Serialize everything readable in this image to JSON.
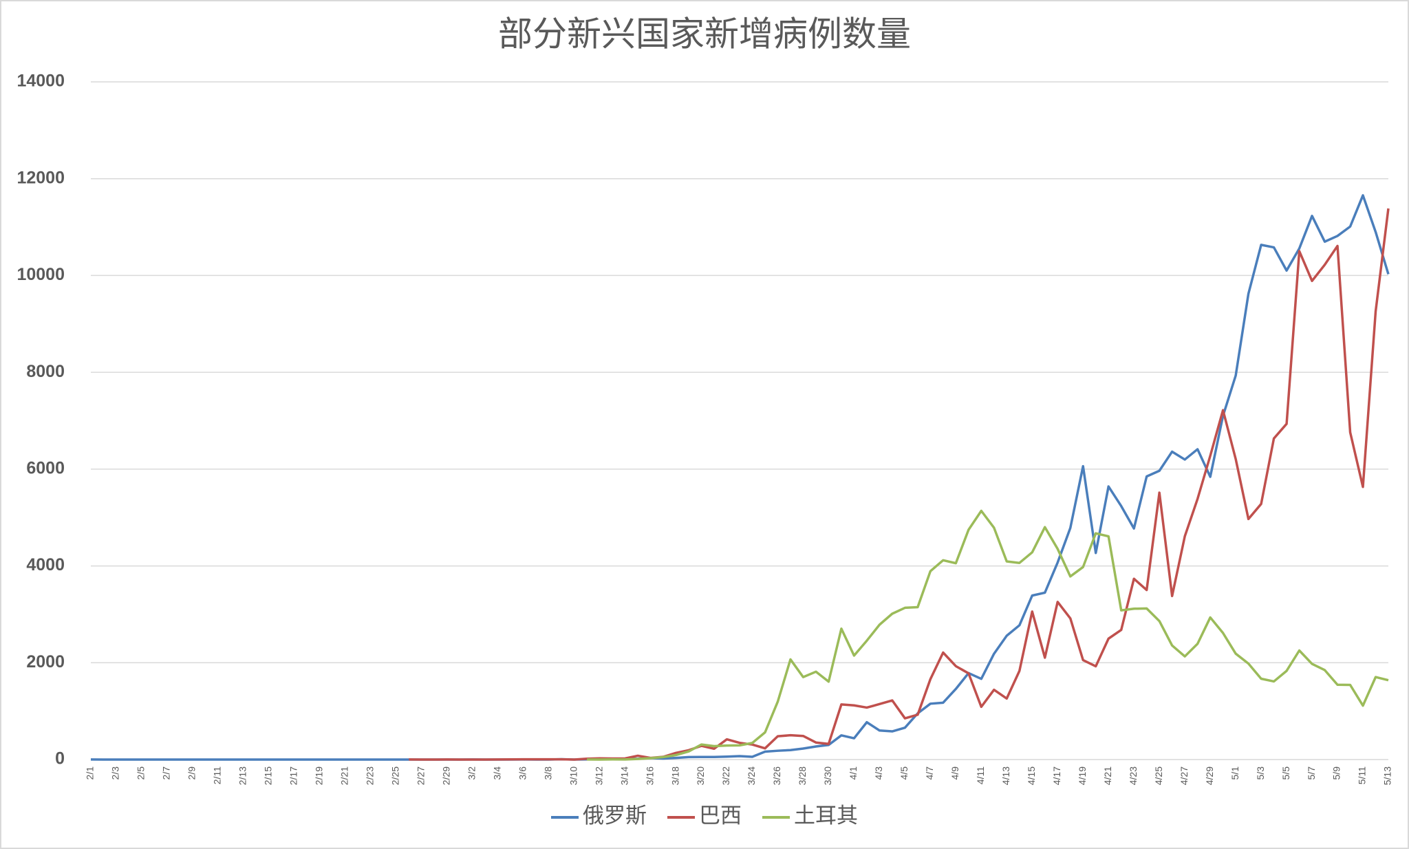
{
  "chart_data": {
    "type": "line",
    "title": "部分新兴国家新增病例数量",
    "categories": [
      "2/1",
      null,
      "2/3",
      null,
      "2/5",
      null,
      "2/7",
      null,
      "2/9",
      null,
      "2/11",
      null,
      "2/13",
      null,
      "2/15",
      null,
      "2/17",
      null,
      "2/19",
      null,
      "2/21",
      null,
      "2/23",
      null,
      "2/25",
      null,
      "2/27",
      null,
      "2/29",
      null,
      "3/2",
      null,
      "3/4",
      null,
      "3/6",
      null,
      "3/8",
      null,
      "3/10",
      null,
      "3/12",
      null,
      "3/14",
      null,
      "3/16",
      null,
      "3/18",
      null,
      "3/20",
      null,
      "3/22",
      null,
      "3/24",
      null,
      "3/26",
      null,
      "3/28",
      null,
      "3/30",
      null,
      "4/1",
      null,
      "4/3",
      null,
      "4/5",
      null,
      "4/7",
      null,
      "4/9",
      null,
      "4/11",
      null,
      "4/13",
      null,
      "4/15",
      null,
      "4/17",
      null,
      "4/19",
      null,
      "4/21",
      null,
      "4/23",
      null,
      "4/25",
      null,
      "4/27",
      null,
      "4/29",
      null,
      "5/1",
      null,
      "5/3",
      null,
      "5/5",
      null,
      "5/7",
      null,
      "5/9",
      null,
      "5/11",
      null,
      "5/13"
    ],
    "series": [
      {
        "name": "俄罗斯",
        "color": "#4a7ebb",
        "values": [
          2,
          0,
          0,
          0,
          0,
          0,
          0,
          0,
          0,
          0,
          0,
          0,
          0,
          0,
          0,
          0,
          0,
          0,
          0,
          0,
          0,
          0,
          0,
          0,
          0,
          0,
          0,
          0,
          0,
          0,
          1,
          0,
          0,
          0,
          1,
          0,
          0,
          7,
          0,
          3,
          6,
          17,
          14,
          18,
          30,
          21,
          33,
          52,
          53,
          54,
          61,
          71,
          57,
          163,
          182,
          196,
          228,
          270,
          302,
          500,
          440,
          771,
          601,
          582,
          658,
          954,
          1154,
          1175,
          1459,
          1786,
          1667,
          2186,
          2558,
          2774,
          3388,
          3448,
          4070,
          4785,
          6060,
          4268,
          5642,
          5236,
          4774,
          5849,
          5966,
          6361,
          6198,
          6411,
          5841,
          7099,
          7933,
          9623,
          10633,
          10581,
          10102,
          10559,
          11231,
          10699,
          10817,
          11012,
          11656,
          10899,
          10028
        ]
      },
      {
        "name": "巴西",
        "color": "#c0504d",
        "values": [
          null,
          null,
          null,
          null,
          null,
          null,
          null,
          null,
          null,
          null,
          null,
          null,
          null,
          null,
          null,
          null,
          null,
          null,
          null,
          null,
          null,
          null,
          null,
          null,
          null,
          1,
          0,
          0,
          1,
          0,
          0,
          0,
          1,
          4,
          6,
          6,
          6,
          5,
          0,
          18,
          25,
          21,
          23,
          79,
          34,
          57,
          137,
          193,
          283,
          224,
          418,
          345,
          310,
          232,
          482,
          502,
          487,
          352,
          323,
          1138,
          1119,
          1074,
          1146,
          1222,
          852,
          926,
          1661,
          2210,
          1930,
          1781,
          1089,
          1442,
          1261,
          1832,
          3058,
          2105,
          3257,
          2917,
          2055,
          1927,
          2498,
          2678,
          3735,
          3503,
          5514,
          3379,
          4613,
          5385,
          6276,
          7218,
          6209,
          4970,
          5281,
          6633,
          6935,
          10503,
          9888,
          10222,
          10611,
          6760,
          5632,
          9258,
          11385
        ]
      },
      {
        "name": "土耳其",
        "color": "#9bbb59",
        "values": [
          null,
          null,
          null,
          null,
          null,
          null,
          null,
          null,
          null,
          null,
          null,
          null,
          null,
          null,
          null,
          null,
          null,
          null,
          null,
          null,
          null,
          null,
          null,
          null,
          null,
          null,
          null,
          null,
          null,
          null,
          null,
          null,
          null,
          null,
          null,
          null,
          null,
          null,
          null,
          1,
          0,
          4,
          1,
          12,
          29,
          51,
          93,
          168,
          311,
          277,
          289,
          293,
          343,
          561,
          1196,
          2069,
          1704,
          1815,
          1610,
          2704,
          2148,
          2456,
          2786,
          3013,
          3135,
          3148,
          3892,
          4117,
          4056,
          4747,
          5138,
          4789,
          4093,
          4062,
          4281,
          4801,
          4353,
          3783,
          3977,
          4674,
          4611,
          3083,
          3116,
          3122,
          2861,
          2357,
          2131,
          2392,
          2936,
          2615,
          2188,
          1983,
          1670,
          1614,
          1832,
          2253,
          1977,
          1848,
          1546,
          1542,
          1114,
          1704,
          1639
        ]
      }
    ],
    "ylim": [
      0,
      14000
    ],
    "yticks": [
      0,
      2000,
      4000,
      6000,
      8000,
      10000,
      12000,
      14000
    ],
    "grid": true,
    "legend": "bottom"
  }
}
